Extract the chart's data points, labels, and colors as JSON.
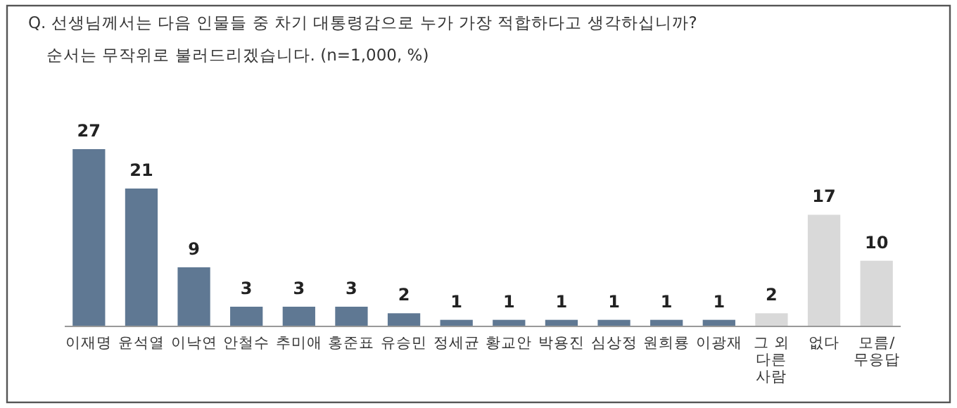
{
  "chart_data": {
    "type": "bar",
    "title": "Q. 선생님께서는 다음 인물들 중 차기 대통령감으로 누가 가장 적합하다고 생각하십니까?",
    "subtitle": "순서는 무작위로 불러드리겠습니다. (n=1,000, %)",
    "categories": [
      "이재명",
      "윤석열",
      "이낙연",
      "안철수",
      "추미애",
      "홍준표",
      "유승민",
      "정세균",
      "황교안",
      "박용진",
      "심상정",
      "원희룡",
      "이광재",
      "그 외\n다른\n사람",
      "없다",
      "모름/\n무응답"
    ],
    "values": [
      27,
      21,
      9,
      3,
      3,
      3,
      2,
      1,
      1,
      1,
      1,
      1,
      1,
      2,
      17,
      10
    ],
    "colors": [
      "#5f7893",
      "#5f7893",
      "#5f7893",
      "#5f7893",
      "#5f7893",
      "#5f7893",
      "#5f7893",
      "#5f7893",
      "#5f7893",
      "#5f7893",
      "#5f7893",
      "#5f7893",
      "#5f7893",
      "#d9d9d9",
      "#d9d9d9",
      "#d9d9d9"
    ],
    "data_labels": true
  }
}
